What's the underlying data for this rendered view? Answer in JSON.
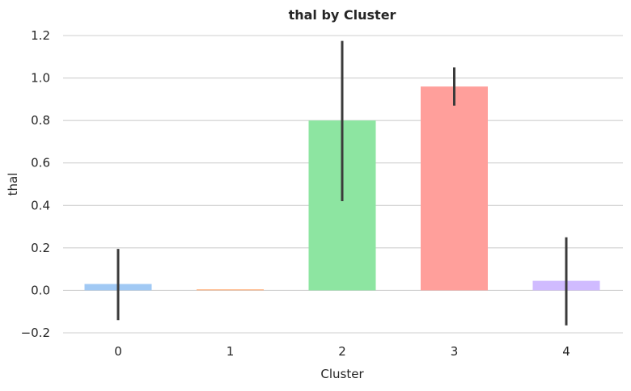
{
  "chart_data": {
    "type": "bar",
    "title": "thal by Cluster",
    "xlabel": "Cluster",
    "ylabel": "thal",
    "categories": [
      "0",
      "1",
      "2",
      "3",
      "4"
    ],
    "values": [
      0.03,
      0.005,
      0.8,
      0.96,
      0.045
    ],
    "error_low": [
      -0.14,
      0.005,
      0.42,
      0.87,
      -0.165
    ],
    "error_high": [
      0.195,
      0.005,
      1.175,
      1.05,
      0.25
    ],
    "colors": [
      "#a1c9f4",
      "#ffb482",
      "#8de5a1",
      "#ff9f9b",
      "#d0bbff"
    ],
    "error_color": "#3b3b3b",
    "ylim": [
      -0.2,
      1.2
    ],
    "yticks": [
      -0.2,
      0.0,
      0.2,
      0.4,
      0.6,
      0.8,
      1.0,
      1.2
    ],
    "ytick_labels": [
      "−0.2",
      "0.0",
      "0.2",
      "0.4",
      "0.6",
      "0.8",
      "1.0",
      "1.2"
    ],
    "grid": true,
    "legend": "none"
  }
}
